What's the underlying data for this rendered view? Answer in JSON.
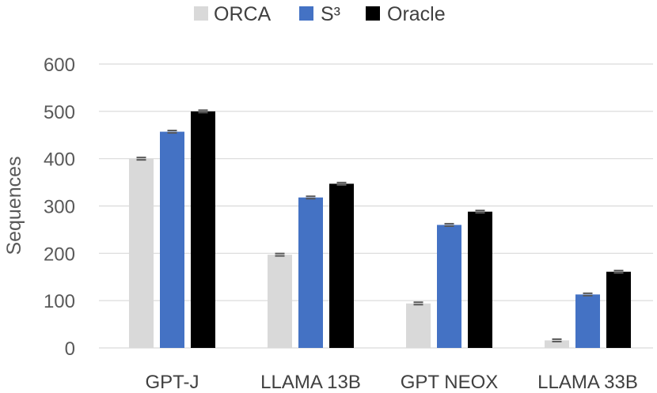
{
  "chart_data": {
    "type": "bar",
    "title": "",
    "xlabel": "",
    "ylabel": "Sequences",
    "ylim": [
      0,
      600
    ],
    "yticks": [
      0,
      100,
      200,
      300,
      400,
      500,
      600
    ],
    "yticks_labels": [
      "0",
      "100",
      "200",
      "300",
      "400",
      "500",
      "600"
    ],
    "grid": true,
    "legend_position": "top",
    "categories": [
      "GPT-J",
      "LLAMA 13B",
      "GPT NEOX",
      "LLAMA 33B"
    ],
    "series": [
      {
        "name": "ORCA",
        "color": "#d9d9d9",
        "values": [
          400,
          197,
          94,
          16
        ]
      },
      {
        "name": "S³",
        "color": "#4472c4",
        "values": [
          457,
          318,
          260,
          113
        ]
      },
      {
        "name": "Oracle",
        "color": "#000000",
        "values": [
          500,
          347,
          288,
          161
        ]
      }
    ],
    "error_bars": true
  }
}
